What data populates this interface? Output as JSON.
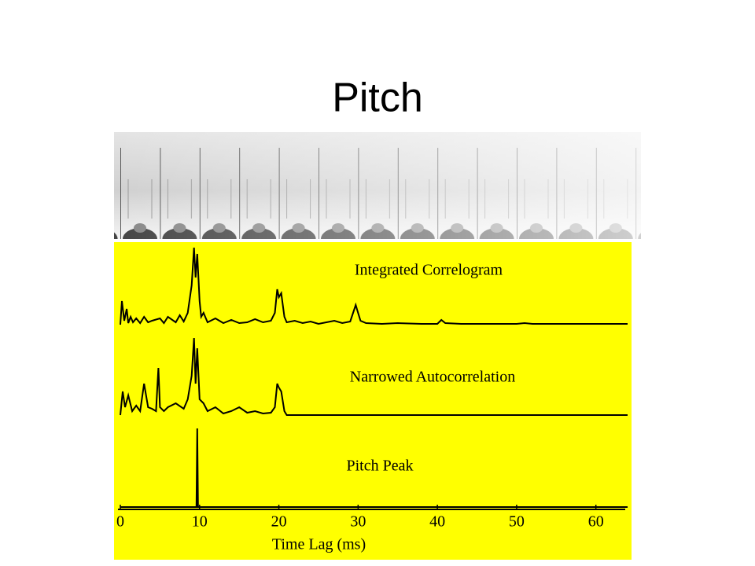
{
  "title": "Pitch",
  "chart_data": [
    {
      "type": "line",
      "title": "Integrated Correlogram",
      "x": [
        0,
        0.2,
        0.5,
        0.8,
        1,
        1.3,
        1.6,
        2,
        2.5,
        3,
        3.5,
        4,
        5,
        5.5,
        6,
        7,
        7.5,
        8,
        8.5,
        9,
        9.3,
        9.5,
        9.7,
        10,
        10.2,
        10.5,
        11,
        12,
        13,
        14,
        15,
        16,
        17,
        18,
        19,
        19.5,
        19.8,
        20,
        20.3,
        20.7,
        21,
        22,
        23,
        24,
        25,
        26,
        27,
        28,
        29,
        29.7,
        30,
        30.3,
        31,
        33,
        35,
        38,
        40,
        40.5,
        41,
        43,
        45,
        47,
        50,
        51,
        52,
        55,
        60,
        64
      ],
      "values": [
        0,
        0.3,
        0.05,
        0.2,
        0.02,
        0.1,
        0.03,
        0.08,
        0.02,
        0.1,
        0.03,
        0.05,
        0.08,
        0.02,
        0.1,
        0.03,
        0.12,
        0.04,
        0.15,
        0.5,
        0.98,
        0.6,
        0.9,
        0.3,
        0.1,
        0.15,
        0.03,
        0.08,
        0.02,
        0.06,
        0.02,
        0.03,
        0.07,
        0.03,
        0.05,
        0.15,
        0.45,
        0.35,
        0.4,
        0.1,
        0.03,
        0.05,
        0.02,
        0.04,
        0.01,
        0.03,
        0.05,
        0.02,
        0.04,
        0.25,
        0.15,
        0.05,
        0.02,
        0.01,
        0.02,
        0.01,
        0.01,
        0.06,
        0.02,
        0.01,
        0.01,
        0.01,
        0.01,
        0.02,
        0.01,
        0.01,
        0.01,
        0.01
      ],
      "color": "#000000",
      "xlim": [
        0,
        64
      ],
      "ylim": [
        0,
        1
      ]
    },
    {
      "type": "line",
      "title": "Narrowed Autocorrelation",
      "x": [
        0,
        0.3,
        0.6,
        1,
        1.5,
        2,
        2.5,
        3,
        3.5,
        4,
        4.5,
        4.8,
        5,
        5.5,
        6,
        7,
        8,
        8.5,
        9,
        9.3,
        9.5,
        9.7,
        10,
        10.5,
        11,
        12,
        13,
        14,
        15,
        16,
        17,
        18,
        19,
        19.5,
        19.8,
        20,
        20.3,
        20.7,
        21,
        64
      ],
      "values": [
        0,
        0.3,
        0.1,
        0.25,
        0.05,
        0.12,
        0.05,
        0.4,
        0.1,
        0.08,
        0.05,
        0.6,
        0.1,
        0.05,
        0.1,
        0.15,
        0.08,
        0.2,
        0.5,
        0.98,
        0.4,
        0.85,
        0.2,
        0.15,
        0.05,
        0.1,
        0.02,
        0.05,
        0.1,
        0.03,
        0.05,
        0.02,
        0.03,
        0.1,
        0.4,
        0.35,
        0.3,
        0.05,
        0,
        0
      ],
      "color": "#000000",
      "xlim": [
        0,
        64
      ],
      "ylim": [
        0,
        1
      ]
    },
    {
      "type": "line",
      "title": "Pitch Peak",
      "x": [
        0,
        9.6,
        9.7,
        9.8,
        64
      ],
      "values": [
        0,
        0,
        1,
        0,
        0
      ],
      "color": "#000000",
      "xlim": [
        0,
        64
      ],
      "ylim": [
        0,
        1
      ],
      "xticks": [
        0,
        10,
        20,
        30,
        40,
        50,
        60
      ],
      "x_label": "Time Lag (ms)"
    }
  ]
}
